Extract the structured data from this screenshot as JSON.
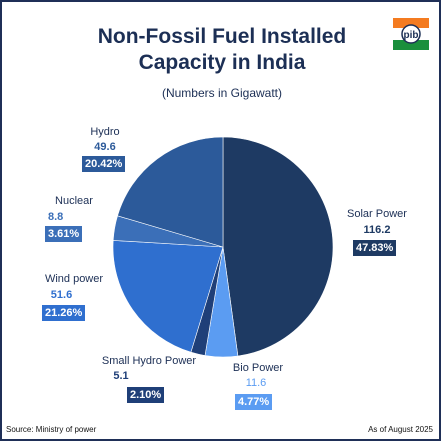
{
  "header": {
    "title_line1": "Non-Fossil Fuel Installed",
    "title_line2": "Capacity in India",
    "subtitle": "(Numbers in Gigawatt)"
  },
  "logo": {
    "text": "pib",
    "subtext": "PIB"
  },
  "chart_data": {
    "type": "pie",
    "title": "Non-Fossil Fuel Installed Capacity in India",
    "subtitle": "(Numbers in Gigawatt)",
    "categories": [
      "Solar Power",
      "Bio Power",
      "Small Hydro Power",
      "Wind power",
      "Nuclear",
      "Hydro"
    ],
    "values": [
      116.2,
      11.6,
      5.1,
      51.6,
      8.8,
      49.6
    ],
    "value_labels": [
      "116.2",
      "11.6",
      "5.1",
      "51.6",
      "8.8",
      "49.6"
    ],
    "percent_labels": [
      "47.83%",
      "4.77%",
      "2.10%",
      "21.26%",
      "3.61%",
      "20.42%"
    ],
    "colors": [
      "#1e3a63",
      "#5b9cf2",
      "#1f3f78",
      "#2f6fcf",
      "#3b6fb8",
      "#2c5a9a"
    ]
  },
  "footer": {
    "source": "Source: Ministry of power",
    "date": "As of August 2025"
  }
}
